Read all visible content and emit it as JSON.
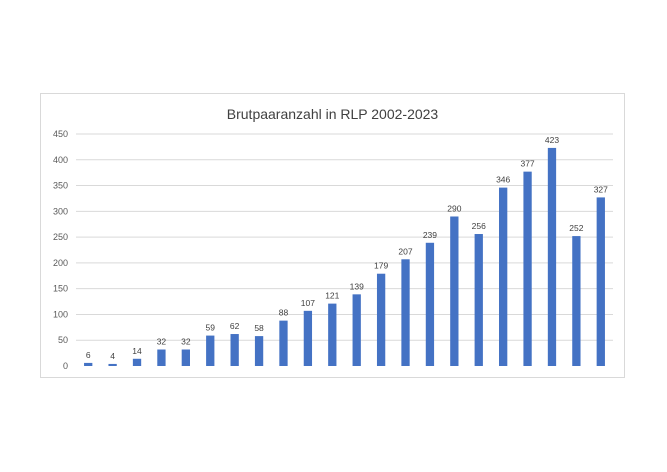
{
  "chart_data": {
    "type": "bar",
    "title": "Brutpaaranzahl in RLP 2002-2023",
    "xlabel": "",
    "ylabel": "",
    "ylim": [
      0,
      450
    ],
    "yticks": [
      0,
      50,
      100,
      150,
      200,
      250,
      300,
      350,
      400,
      450
    ],
    "grid": true,
    "legend": "none",
    "bar_color": "#4472c4",
    "values": [
      6,
      4,
      14,
      32,
      32,
      59,
      62,
      58,
      88,
      107,
      121,
      139,
      179,
      207,
      239,
      290,
      256,
      346,
      377,
      423,
      252,
      327
    ]
  }
}
